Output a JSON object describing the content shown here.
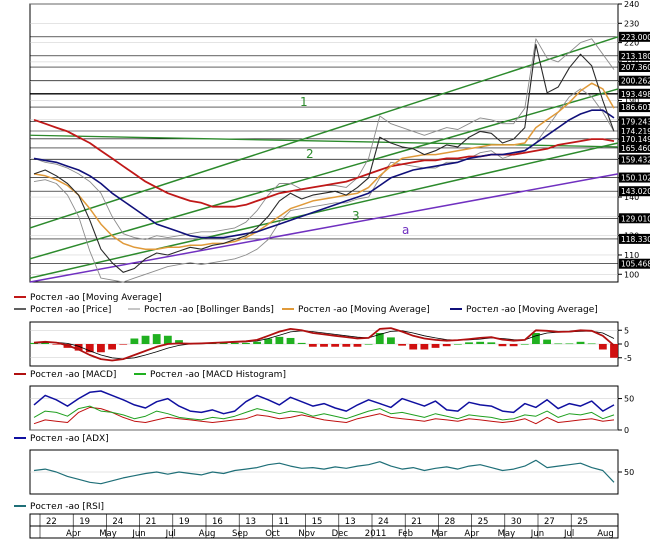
{
  "colors": {
    "price": "#2a2a2a",
    "bollinger": "#8c8c8c",
    "ma_long": "#c01818",
    "ma_short": "#e09a3a",
    "ma_mid": "#10107a",
    "trend_green": "#2c8a2c",
    "trend_purple": "#7030c0",
    "macd_line": "#b01010",
    "macd_hist_up": "#20b020",
    "macd_hist_down": "#d01010",
    "adx": "#1010a0",
    "di_plus": "#20a020",
    "di_minus": "#c01010",
    "rsi": "#1f6f78",
    "level_line": "#000000",
    "grid": "#c8c8c8",
    "label_box": "#000000"
  },
  "chart_data": [
    {
      "id": "price-panel",
      "type": "line",
      "yaxis_ticks": [
        240,
        230,
        220,
        210,
        200,
        190,
        180,
        170,
        160,
        150,
        140,
        130,
        120,
        110,
        100
      ],
      "ylim": [
        96,
        240
      ],
      "level_labels": [
        "223.000",
        "213.180",
        "207.360",
        "200.262",
        "193.498",
        "186.601",
        "179.243",
        "174.219",
        "170.149",
        "165.460",
        "159.432",
        "150.102",
        "143.020",
        "129.010",
        "118.330",
        "105.468"
      ],
      "trendline_labels": [
        "1",
        "2",
        "3",
        "a"
      ],
      "price": [
        152,
        154,
        151,
        147,
        141,
        128,
        113,
        106,
        101,
        103,
        108,
        111,
        110,
        112,
        114,
        113,
        115,
        116,
        118,
        120,
        124,
        130,
        138,
        142,
        139,
        141,
        142,
        143,
        141,
        145,
        150,
        171,
        168,
        166,
        165,
        162,
        164,
        167,
        166,
        171,
        174,
        173,
        168,
        170,
        176,
        219,
        194,
        197,
        207,
        214,
        208,
        190,
        174
      ],
      "bollinger_upper": [
        160,
        158,
        157,
        155,
        152,
        148,
        142,
        130,
        121,
        119,
        118,
        120,
        119,
        120,
        121,
        122,
        122,
        123,
        124,
        127,
        133,
        141,
        147,
        147,
        144,
        145,
        146,
        146,
        145,
        150,
        160,
        182,
        178,
        176,
        174,
        172,
        174,
        176,
        175,
        178,
        181,
        180,
        178,
        178,
        186,
        222,
        212,
        210,
        215,
        220,
        222,
        214,
        206
      ],
      "bollinger_lower": [
        148,
        149,
        147,
        141,
        130,
        112,
        98,
        97,
        96,
        98,
        100,
        102,
        104,
        105,
        106,
        105,
        106,
        107,
        108,
        110,
        113,
        118,
        127,
        133,
        134,
        135,
        136,
        137,
        137,
        139,
        140,
        150,
        158,
        157,
        156,
        155,
        155,
        158,
        158,
        160,
        163,
        164,
        160,
        162,
        164,
        168,
        176,
        184,
        192,
        196,
        192,
        184,
        174
      ],
      "ma_long": [
        180,
        178,
        176,
        174,
        171,
        168,
        164,
        160,
        156,
        152,
        148,
        145,
        142,
        140,
        138,
        137,
        135,
        135,
        135,
        136,
        138,
        140,
        142,
        143,
        144,
        145,
        146,
        147,
        148,
        150,
        152,
        154,
        156,
        157,
        158,
        159,
        159,
        160,
        160,
        161,
        161,
        162,
        162,
        162,
        163,
        164,
        165,
        167,
        168,
        169,
        170,
        170,
        169
      ],
      "ma_short": [
        152,
        151,
        149,
        146,
        141,
        134,
        126,
        120,
        116,
        114,
        113,
        113,
        114,
        114,
        115,
        115,
        116,
        116,
        117,
        119,
        122,
        126,
        130,
        134,
        136,
        138,
        139,
        140,
        141,
        142,
        145,
        151,
        156,
        160,
        161,
        162,
        162,
        163,
        164,
        165,
        166,
        167,
        167,
        167,
        168,
        176,
        180,
        184,
        189,
        195,
        199,
        196,
        186
      ],
      "ma_mid": [
        160,
        159,
        158,
        156,
        154,
        151,
        147,
        142,
        138,
        134,
        130,
        126,
        124,
        122,
        120,
        119,
        119,
        119,
        120,
        121,
        122,
        124,
        126,
        128,
        130,
        132,
        134,
        136,
        138,
        140,
        142,
        146,
        150,
        152,
        154,
        155,
        156,
        157,
        158,
        160,
        161,
        162,
        162,
        163,
        164,
        168,
        172,
        176,
        180,
        183,
        185,
        185,
        181
      ]
    },
    {
      "id": "macd-panel",
      "type": "line",
      "yaxis_ticks": [
        5,
        0,
        -5
      ],
      "ylim": [
        -8,
        8
      ],
      "macd": [
        0.5,
        0.8,
        0.5,
        -0.5,
        -2,
        -4,
        -5.5,
        -6,
        -5.5,
        -4,
        -2.5,
        -1,
        0,
        0.2,
        0.1,
        0.2,
        0.4,
        0.6,
        0.8,
        1,
        1.5,
        3,
        4.5,
        5.5,
        5,
        4,
        3.5,
        3,
        2.5,
        2,
        2.2,
        5.5,
        5.8,
        4.5,
        3,
        2,
        1.5,
        1.2,
        1.4,
        1.8,
        2.2,
        2.5,
        1.6,
        1.2,
        1.5,
        5,
        4.8,
        4.4,
        4.5,
        5,
        4.8,
        3,
        -0.5
      ],
      "signal": [
        0.3,
        0.5,
        0.6,
        0.2,
        -0.8,
        -2.5,
        -4,
        -5,
        -5.4,
        -5,
        -4,
        -2.8,
        -1.5,
        -0.5,
        0,
        0.1,
        0.2,
        0.4,
        0.6,
        0.8,
        1.1,
        2,
        3.2,
        4.4,
        4.8,
        4.5,
        4,
        3.5,
        3,
        2.5,
        2.2,
        3.5,
        4.6,
        4.8,
        4,
        3,
        2.2,
        1.6,
        1.4,
        1.5,
        1.8,
        2.2,
        2,
        1.6,
        1.5,
        3,
        4,
        4.3,
        4.4,
        4.6,
        4.7,
        4,
        2
      ]
    },
    {
      "id": "adx-panel",
      "type": "line",
      "yaxis_ticks": [
        50,
        0
      ],
      "ylim": [
        0,
        70
      ],
      "adx": [
        40,
        55,
        48,
        38,
        50,
        60,
        62,
        55,
        48,
        40,
        35,
        45,
        50,
        38,
        30,
        28,
        32,
        26,
        30,
        45,
        55,
        48,
        40,
        52,
        45,
        38,
        42,
        35,
        30,
        40,
        48,
        42,
        36,
        50,
        44,
        38,
        46,
        32,
        30,
        44,
        40,
        38,
        30,
        28,
        42,
        36,
        48,
        34,
        42,
        38,
        46,
        30,
        40
      ],
      "di_plus": [
        20,
        30,
        28,
        22,
        34,
        38,
        30,
        28,
        24,
        18,
        22,
        30,
        26,
        20,
        18,
        16,
        20,
        18,
        22,
        28,
        34,
        30,
        26,
        30,
        28,
        22,
        26,
        22,
        18,
        24,
        30,
        34,
        26,
        28,
        24,
        20,
        26,
        22,
        18,
        24,
        22,
        20,
        16,
        18,
        24,
        22,
        30,
        20,
        26,
        24,
        28,
        18,
        24
      ],
      "di_minus": [
        10,
        16,
        14,
        12,
        28,
        36,
        34,
        28,
        20,
        14,
        12,
        16,
        20,
        18,
        16,
        14,
        12,
        14,
        16,
        18,
        24,
        22,
        18,
        20,
        24,
        20,
        16,
        14,
        12,
        18,
        22,
        26,
        20,
        18,
        16,
        14,
        18,
        16,
        14,
        18,
        16,
        14,
        12,
        14,
        18,
        10,
        20,
        12,
        14,
        16,
        18,
        14,
        16
      ]
    },
    {
      "id": "rsi-panel",
      "type": "line",
      "yaxis_ticks": [
        50
      ],
      "ylim": [
        20,
        80
      ],
      "rsi": [
        52,
        54,
        50,
        44,
        40,
        36,
        34,
        38,
        42,
        45,
        48,
        50,
        47,
        50,
        48,
        46,
        50,
        48,
        52,
        54,
        56,
        60,
        62,
        58,
        55,
        56,
        54,
        57,
        55,
        58,
        60,
        64,
        58,
        54,
        56,
        52,
        55,
        57,
        54,
        58,
        60,
        56,
        52,
        54,
        58,
        66,
        56,
        58,
        60,
        62,
        56,
        52,
        36
      ]
    }
  ],
  "legends": {
    "price": [
      "Ростел -ао [Moving Average]",
      "Ростел -ао [Price]",
      "Ростел -ао [Bollinger Bands]",
      "Ростел -ао [Moving Average]",
      "Ростел -ао [Moving Average]"
    ],
    "macd": [
      "Ростел -ао [MACD]",
      "Ростел -ао [MACD Histogram]"
    ],
    "adx": [
      "Ростел -ао [ADX]"
    ],
    "rsi": [
      "Ростел -ао [RSI]"
    ]
  },
  "x_axis": {
    "day_labels": [
      "22",
      "19",
      "24",
      "21",
      "19",
      "16",
      "13",
      "11",
      "15",
      "13",
      "24",
      "21",
      "28",
      "25",
      "30",
      "27",
      "25"
    ],
    "month_labels": [
      "Apr",
      "May",
      "Jun",
      "Jul",
      "Aug",
      "Sep",
      "Oct",
      "Nov",
      "Dec",
      "2011",
      "Feb",
      "Mar",
      "Apr",
      "May",
      "Jun",
      "Jul",
      "Aug"
    ]
  }
}
